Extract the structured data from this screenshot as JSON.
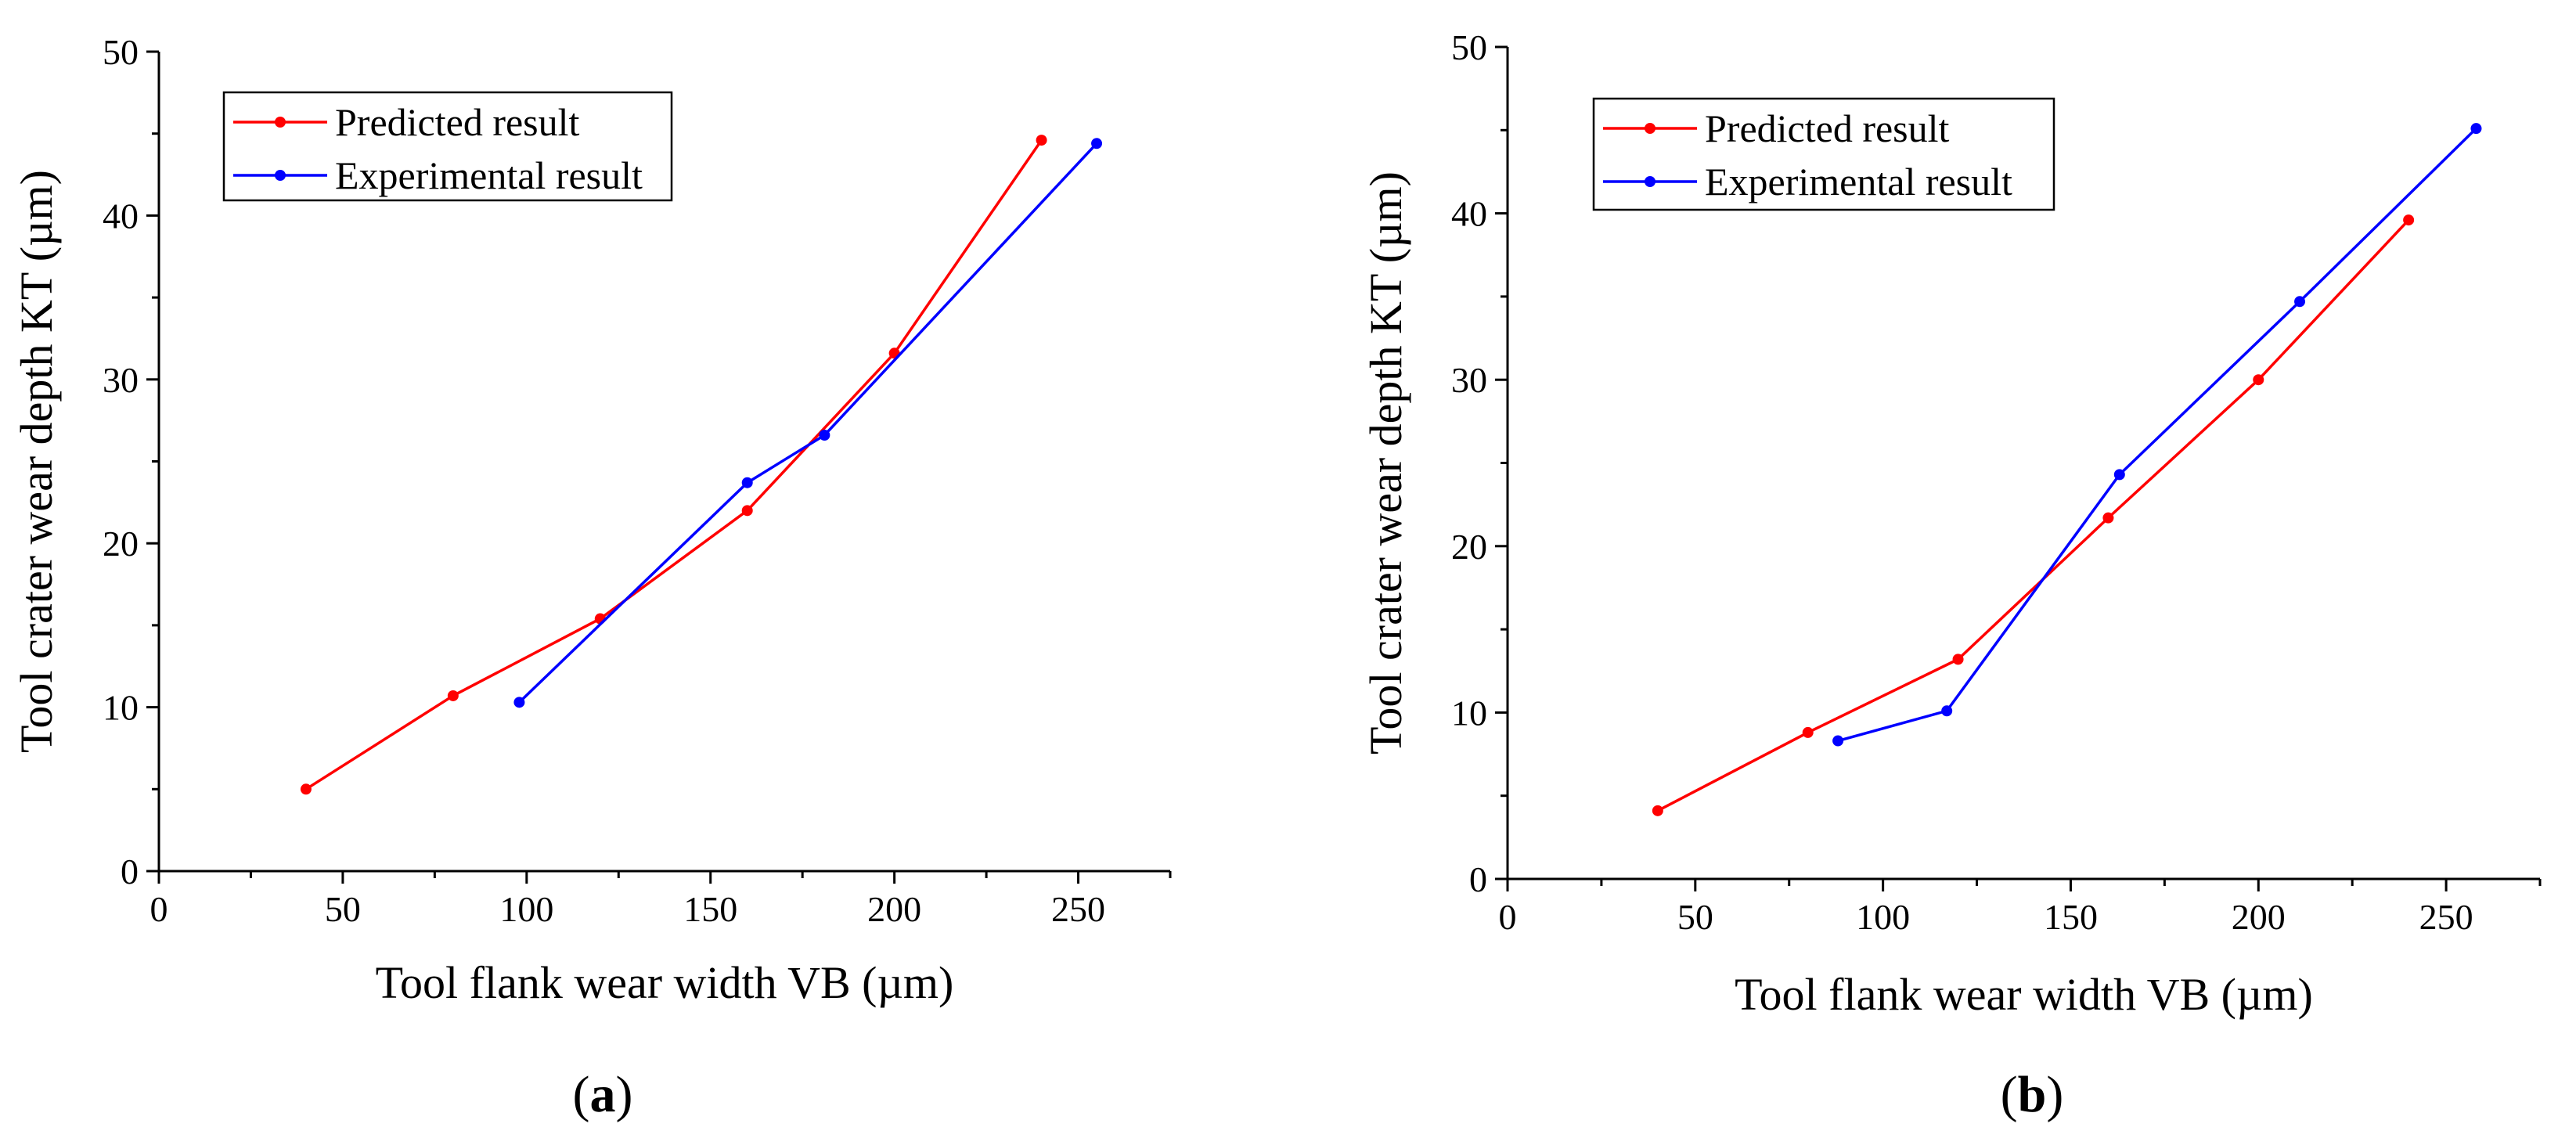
{
  "chart_data": [
    {
      "type": "line",
      "panel_label": "a",
      "xlabel": "Tool flank wear width VB (µm)",
      "ylabel": "Tool crater wear depth KT (µm)",
      "xlim": [
        0,
        275
      ],
      "ylim": [
        0,
        50
      ],
      "x_ticks": [
        "0",
        "50",
        "100",
        "150",
        "200",
        "250"
      ],
      "y_ticks": [
        "0",
        "10",
        "20",
        "30",
        "40",
        "50"
      ],
      "legend_position": "top-left",
      "grid": false,
      "series": [
        {
          "name": "Predicted result",
          "color": "#ff0000",
          "points": [
            [
              40,
              5.0
            ],
            [
              80,
              10.7
            ],
            [
              120,
              15.4
            ],
            [
              160,
              22.0
            ],
            [
              200,
              31.6
            ],
            [
              240,
              44.6
            ]
          ]
        },
        {
          "name": "Experimental result",
          "color": "#0000ff",
          "points": [
            [
              98,
              10.3
            ],
            [
              160,
              23.7
            ],
            [
              181,
              26.6
            ],
            [
              255,
              44.4
            ]
          ]
        }
      ]
    },
    {
      "type": "line",
      "panel_label": "b",
      "xlabel": "Tool flank wear width VB (µm)",
      "ylabel": "Tool crater wear depth KT (µm)",
      "xlim": [
        0,
        275
      ],
      "ylim": [
        0,
        50
      ],
      "x_ticks": [
        "0",
        "50",
        "100",
        "150",
        "200",
        "250"
      ],
      "y_ticks": [
        "0",
        "10",
        "20",
        "30",
        "40",
        "50"
      ],
      "legend_position": "top-left",
      "grid": false,
      "series": [
        {
          "name": "Predicted result",
          "color": "#ff0000",
          "points": [
            [
              40,
              4.1
            ],
            [
              80,
              8.8
            ],
            [
              120,
              13.2
            ],
            [
              160,
              21.7
            ],
            [
              200,
              30.0
            ],
            [
              240,
              39.6
            ]
          ]
        },
        {
          "name": "Experimental result",
          "color": "#0000ff",
          "points": [
            [
              88,
              8.3
            ],
            [
              117,
              10.1
            ],
            [
              163,
              24.3
            ],
            [
              211,
              34.7
            ],
            [
              258,
              45.1
            ]
          ]
        }
      ]
    }
  ]
}
